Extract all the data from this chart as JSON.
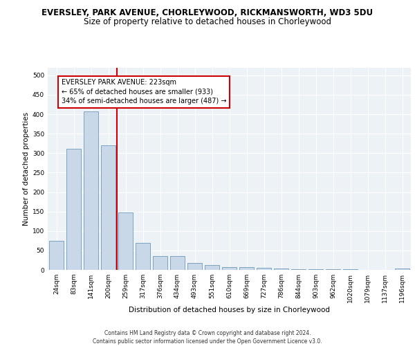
{
  "title": "EVERSLEY, PARK AVENUE, CHORLEYWOOD, RICKMANSWORTH, WD3 5DU",
  "subtitle": "Size of property relative to detached houses in Chorleywood",
  "xlabel": "Distribution of detached houses by size in Chorleywood",
  "ylabel": "Number of detached properties",
  "categories": [
    "24sqm",
    "83sqm",
    "141sqm",
    "200sqm",
    "259sqm",
    "317sqm",
    "376sqm",
    "434sqm",
    "493sqm",
    "551sqm",
    "610sqm",
    "669sqm",
    "727sqm",
    "786sqm",
    "844sqm",
    "903sqm",
    "962sqm",
    "1020sqm",
    "1079sqm",
    "1137sqm",
    "1196sqm"
  ],
  "values": [
    75,
    312,
    407,
    320,
    148,
    70,
    35,
    35,
    18,
    12,
    7,
    7,
    5,
    3,
    2,
    1,
    1,
    1,
    0,
    0,
    3
  ],
  "bar_color": "#c8d8e8",
  "bar_edge_color": "#7098b8",
  "vline_color": "#cc0000",
  "vline_x": 3.5,
  "annotation_text": "EVERSLEY PARK AVENUE: 223sqm\n← 65% of detached houses are smaller (933)\n34% of semi-detached houses are larger (487) →",
  "annotation_box_color": "#ffffff",
  "annotation_box_edge": "#cc0000",
  "footer": "Contains HM Land Registry data © Crown copyright and database right 2024.\nContains public sector information licensed under the Open Government Licence v3.0.",
  "ylim": [
    0,
    520
  ],
  "yticks": [
    0,
    50,
    100,
    150,
    200,
    250,
    300,
    350,
    400,
    450,
    500
  ],
  "bg_color": "#edf2f7",
  "grid_color": "#ffffff",
  "title_fontsize": 8.5,
  "subtitle_fontsize": 8.5,
  "tick_fontsize": 6.5,
  "label_fontsize": 7.5,
  "footer_fontsize": 5.5
}
